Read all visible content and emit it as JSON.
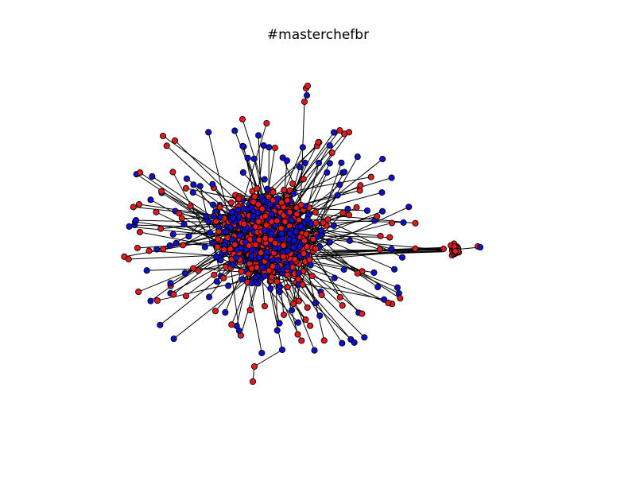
{
  "title": "#masterchefbr",
  "colors": {
    "node_red": "#e41a1c",
    "node_blue": "#1010cc",
    "node_stroke": "#000000",
    "edge": "#000000",
    "background": "#ffffff"
  }
}
